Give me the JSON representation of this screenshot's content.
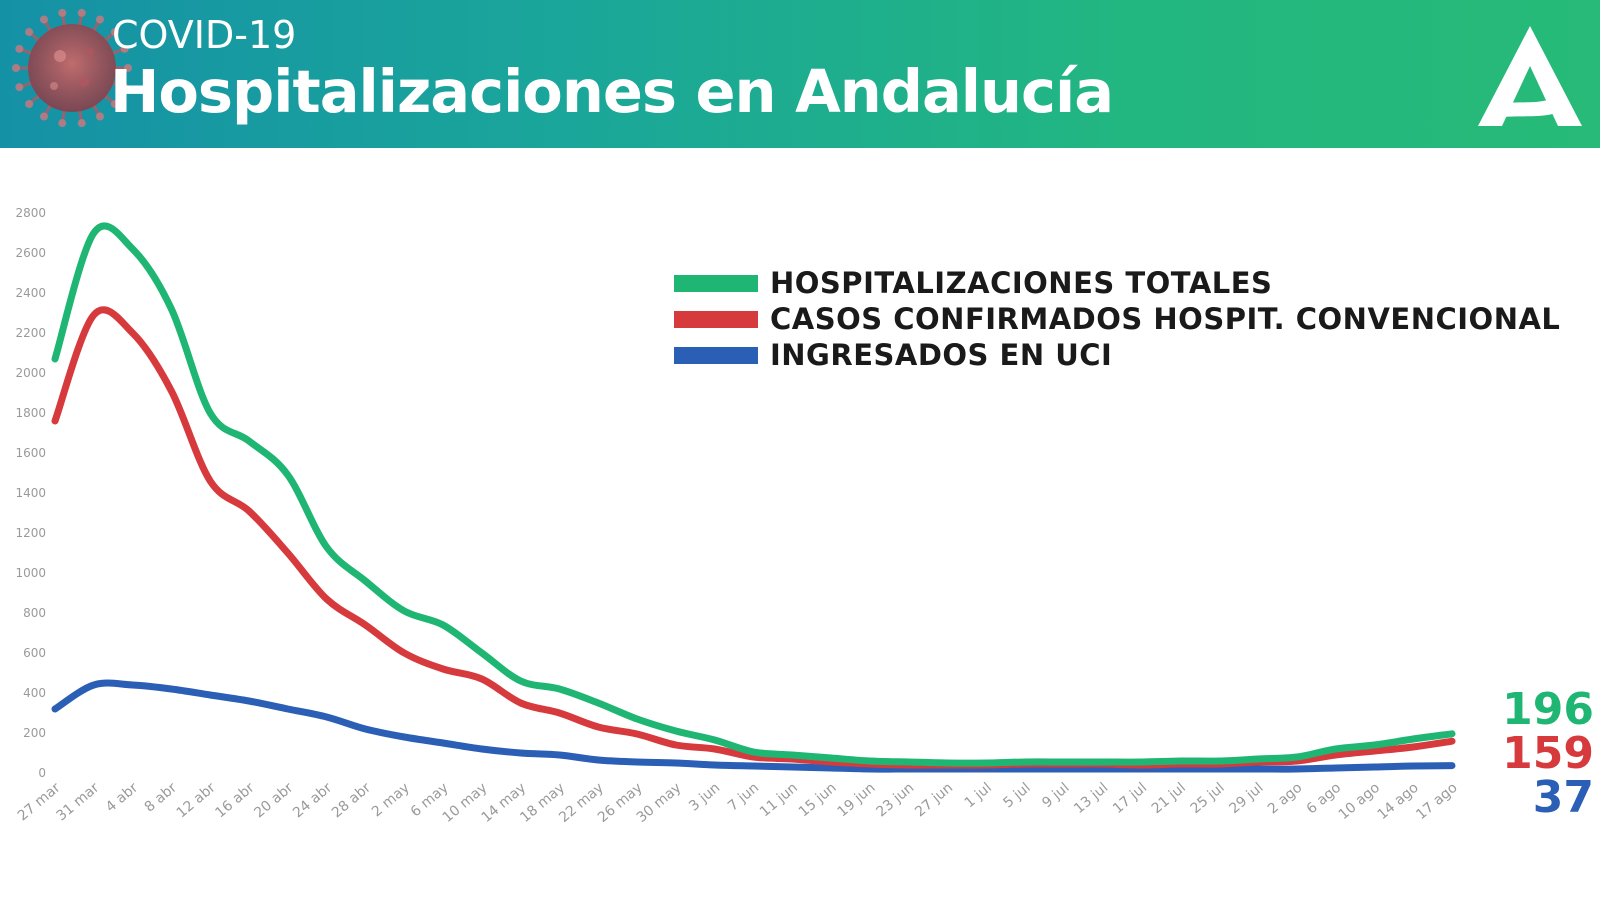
{
  "header": {
    "subtitle": "COVID-19",
    "title": "Hospitalizaciones en Andalucía",
    "logo": "junta-de-andalucia-logo",
    "gradient_colors": [
      "#1591a6",
      "#27ba78"
    ]
  },
  "legend": {
    "items": [
      {
        "label": "HOSPITALIZACIONES TOTALES",
        "color": "#1fb673"
      },
      {
        "label": "CASOS CONFIRMADOS HOSPIT. CONVENCIONAL",
        "color": "#d63a3c"
      },
      {
        "label": "INGRESADOS EN UCI",
        "color": "#2a5fb5"
      }
    ]
  },
  "end_values": {
    "totales": "196",
    "convencional": "159",
    "uci": "37"
  },
  "chart_data": {
    "type": "line",
    "x": [
      "27 mar",
      "31 mar",
      "4 abr",
      "8 abr",
      "12 abr",
      "16 abr",
      "20 abr",
      "24 abr",
      "28 abr",
      "2 may",
      "6 may",
      "10 may",
      "14 may",
      "18 may",
      "22 may",
      "26 may",
      "30 may",
      "3 jun",
      "7 jun",
      "11 jun",
      "15 jun",
      "19 jun",
      "23 jun",
      "27 jun",
      "1 jul",
      "5 jul",
      "9 jul",
      "13 jul",
      "17 jul",
      "21 jul",
      "25 jul",
      "29 jul",
      "2 ago",
      "6 ago",
      "10 ago",
      "14 ago",
      "17 ago"
    ],
    "yticks": [
      "0",
      "200",
      "400",
      "600",
      "800",
      "1000",
      "1200",
      "1400",
      "1600",
      "1800",
      "2000",
      "2200",
      "2400",
      "2600",
      "2800"
    ],
    "ylim": [
      0,
      2800
    ],
    "grid": false,
    "legend_position": "top-right",
    "series": [
      {
        "name": "HOSPITALIZACIONES TOTALES",
        "color": "#1fb673",
        "values": [
          2070,
          2700,
          2620,
          2320,
          1800,
          1660,
          1490,
          1130,
          960,
          810,
          740,
          600,
          460,
          420,
          350,
          270,
          210,
          165,
          105,
          90,
          75,
          60,
          55,
          50,
          50,
          55,
          55,
          55,
          55,
          60,
          60,
          70,
          80,
          120,
          140,
          170,
          196
        ]
      },
      {
        "name": "CASOS CONFIRMADOS HOSPIT. CONVENCIONAL",
        "color": "#d63a3c",
        "values": [
          1760,
          2290,
          2200,
          1910,
          1460,
          1310,
          1100,
          870,
          740,
          600,
          520,
          470,
          350,
          300,
          230,
          195,
          140,
          120,
          80,
          70,
          55,
          45,
          40,
          40,
          40,
          45,
          45,
          45,
          40,
          45,
          45,
          55,
          60,
          90,
          110,
          130,
          159
        ]
      },
      {
        "name": "INGRESADOS EN UCI",
        "color": "#2a5fb5",
        "values": [
          320,
          440,
          440,
          420,
          390,
          360,
          320,
          280,
          220,
          180,
          150,
          120,
          100,
          90,
          65,
          55,
          50,
          40,
          35,
          30,
          25,
          20,
          20,
          20,
          20,
          20,
          20,
          20,
          20,
          20,
          20,
          20,
          20,
          25,
          30,
          35,
          37
        ]
      }
    ]
  }
}
